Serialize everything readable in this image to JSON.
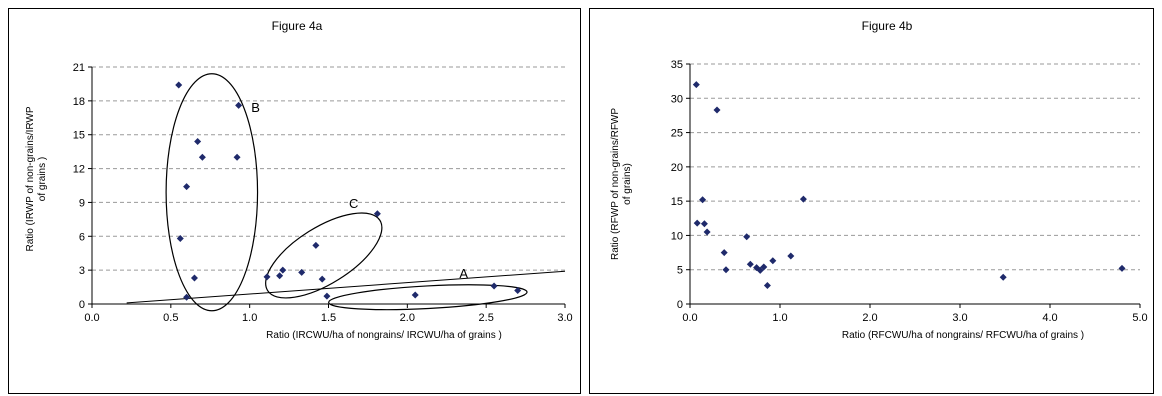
{
  "chart_data": [
    {
      "type": "scatter",
      "title": "Figure 4a",
      "xlabel": "Ratio (IRCWU/ha of nongrains/ IRCWU/ha of grains )",
      "ylabel": "Ratio (IRWP of non-grains/IRWP of grains )",
      "xlim": [
        0,
        3
      ],
      "ylim": [
        0,
        21
      ],
      "xticks": [
        "0.0",
        "0.5",
        "1.0",
        "1.5",
        "2.0",
        "2.5",
        "3.0"
      ],
      "yticks": [
        "0",
        "3",
        "6",
        "9",
        "12",
        "15",
        "18",
        "21"
      ],
      "grid": "horizontal dashed",
      "marker_color": "#1f2a6b",
      "points": [
        [
          0.55,
          19.4
        ],
        [
          0.93,
          17.6
        ],
        [
          0.67,
          14.4
        ],
        [
          0.7,
          13.0
        ],
        [
          0.92,
          13.0
        ],
        [
          0.6,
          10.4
        ],
        [
          0.56,
          5.8
        ],
        [
          0.65,
          2.3
        ],
        [
          0.6,
          0.6
        ],
        [
          1.81,
          8.0
        ],
        [
          1.42,
          5.2
        ],
        [
          1.21,
          3.0
        ],
        [
          1.33,
          2.8
        ],
        [
          1.19,
          2.5
        ],
        [
          1.11,
          2.4
        ],
        [
          1.46,
          2.2
        ],
        [
          1.49,
          0.7
        ],
        [
          2.05,
          0.8
        ],
        [
          2.55,
          1.6
        ],
        [
          2.7,
          1.2
        ]
      ],
      "trendline": [
        [
          0.22,
          0.1
        ],
        [
          3.0,
          2.9
        ]
      ],
      "annotations": [
        {
          "label": "B",
          "x": 1.01,
          "y": 17.0
        },
        {
          "label": "C",
          "x": 1.63,
          "y": 8.5
        },
        {
          "label": "A",
          "x": 2.33,
          "y": 2.3
        }
      ],
      "ellipses": [
        {
          "cx": 0.76,
          "cy": 9.9,
          "rx": 0.29,
          "ry": 10.5,
          "angle": 0
        },
        {
          "cx": 1.47,
          "cy": 4.3,
          "rx": 0.42,
          "ry": 2.5,
          "angle": -32
        },
        {
          "cx": 2.13,
          "cy": 0.6,
          "rx": 0.63,
          "ry": 1.0,
          "angle": -3
        }
      ]
    },
    {
      "type": "scatter",
      "title": "Figure 4b",
      "xlabel": "Ratio (RFCWU/ha of nongrains/ RFCWU/ha of grains )",
      "ylabel": "Ratio (RFWP of non-grains/RFWP of grains)",
      "xlim": [
        0,
        5
      ],
      "ylim": [
        0,
        35
      ],
      "xticks": [
        "0.0",
        "1.0",
        "2.0",
        "3.0",
        "4.0",
        "5.0"
      ],
      "yticks": [
        "0",
        "5",
        "10",
        "15",
        "20",
        "25",
        "30",
        "35"
      ],
      "grid": "horizontal dashed",
      "marker_color": "#1f2a6b",
      "points": [
        [
          0.07,
          32.0
        ],
        [
          0.3,
          28.3
        ],
        [
          0.14,
          15.2
        ],
        [
          1.26,
          15.3
        ],
        [
          0.08,
          11.8
        ],
        [
          0.16,
          11.7
        ],
        [
          0.19,
          10.5
        ],
        [
          0.63,
          9.8
        ],
        [
          0.38,
          7.5
        ],
        [
          1.12,
          7.0
        ],
        [
          0.92,
          6.3
        ],
        [
          0.67,
          5.8
        ],
        [
          0.74,
          5.3
        ],
        [
          0.82,
          5.4
        ],
        [
          0.78,
          4.9
        ],
        [
          0.4,
          5.0
        ],
        [
          0.86,
          2.7
        ],
        [
          3.48,
          3.9
        ],
        [
          4.8,
          5.2
        ]
      ]
    }
  ]
}
